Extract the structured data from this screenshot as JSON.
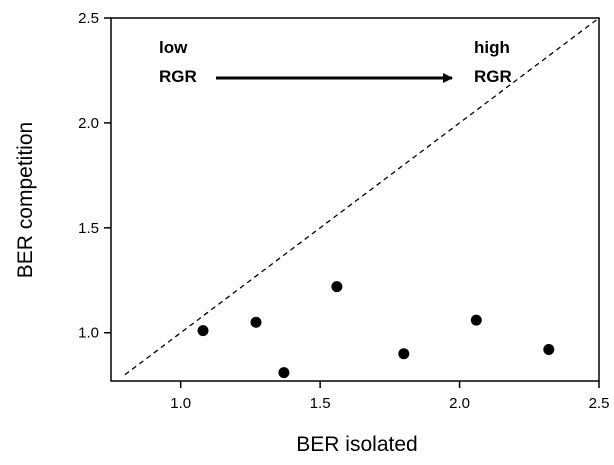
{
  "chart_data": {
    "type": "scatter",
    "xlabel": "BER isolated",
    "ylabel": "BER competition",
    "xlim": [
      0.75,
      2.5
    ],
    "ylim": [
      0.77,
      2.5
    ],
    "x_ticks": [
      1.0,
      1.5,
      2.0,
      2.5
    ],
    "x_tick_labels": [
      "1.0",
      "1.5",
      "2.0",
      "2.5"
    ],
    "y_ticks": [
      1.0,
      1.5,
      2.0,
      2.5
    ],
    "y_tick_labels": [
      "1.0",
      "1.5",
      "2.0",
      "2.5"
    ],
    "grid": false,
    "series": [
      {
        "points": [
          {
            "x": 1.08,
            "y": 1.01
          },
          {
            "x": 1.27,
            "y": 1.05
          },
          {
            "x": 1.37,
            "y": 0.81
          },
          {
            "x": 1.56,
            "y": 1.22
          },
          {
            "x": 1.8,
            "y": 0.9
          },
          {
            "x": 2.06,
            "y": 1.06
          },
          {
            "x": 2.32,
            "y": 0.92
          }
        ],
        "color": "#000000"
      }
    ],
    "reference_line": {
      "type": "y=x",
      "style": "dashed",
      "from": 0.8,
      "to": 2.5
    },
    "annotations": {
      "left_line1": "low",
      "left_line2": "RGR",
      "right_line1": "high",
      "right_line2": "RGR",
      "arrow": "left-to-right"
    }
  }
}
